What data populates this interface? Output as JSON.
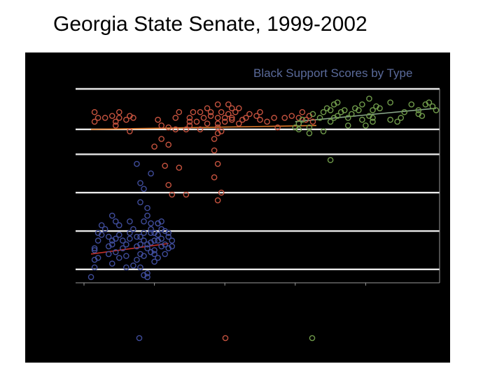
{
  "slide": {
    "title": "Georgia State Senate, 1999-2002"
  },
  "colors": {
    "background": "#000000",
    "group1": "#3f4c9a",
    "group2": "#c4523e",
    "group3": "#6f9a4a",
    "trend1": "#c0302a",
    "trend2": "#e07a2a",
    "trend3": "#8aa88a",
    "gridline": "#e8e8e8",
    "chart_title": "#5a6a9a"
  },
  "chart_data": {
    "type": "scatter",
    "title": "Black Support Scores by Type",
    "xlabel": "",
    "ylabel": "",
    "xlim": [
      0,
      100
    ],
    "ylim": [
      0,
      100
    ],
    "y_gridlines": [
      7,
      27,
      47,
      67,
      80
    ],
    "x_ticks": [
      0,
      20,
      40,
      60,
      80
    ],
    "grid": true,
    "legend_placement": "bottom",
    "series": [
      {
        "key": "group1",
        "points": [
          [
            2,
            3
          ],
          [
            3,
            8
          ],
          [
            3,
            12
          ],
          [
            4,
            13
          ],
          [
            3,
            17
          ],
          [
            3,
            18
          ],
          [
            4,
            22
          ],
          [
            4,
            26
          ],
          [
            5,
            25
          ],
          [
            6,
            28
          ],
          [
            5,
            30
          ],
          [
            7,
            15
          ],
          [
            7,
            19
          ],
          [
            7,
            24
          ],
          [
            8,
            10
          ],
          [
            8,
            20
          ],
          [
            8,
            22
          ],
          [
            9,
            16
          ],
          [
            9,
            23
          ],
          [
            10,
            25
          ],
          [
            10,
            30
          ],
          [
            9,
            32
          ],
          [
            8,
            35
          ],
          [
            10,
            13
          ],
          [
            11,
            18
          ],
          [
            11,
            22
          ],
          [
            12,
            8
          ],
          [
            12,
            14
          ],
          [
            12,
            20
          ],
          [
            13,
            23
          ],
          [
            13,
            26
          ],
          [
            13,
            32
          ],
          [
            14,
            28
          ],
          [
            14,
            9
          ],
          [
            15,
            12
          ],
          [
            15,
            19
          ],
          [
            15,
            24
          ],
          [
            16,
            8
          ],
          [
            16,
            15
          ],
          [
            16,
            20
          ],
          [
            16,
            24
          ],
          [
            17,
            14
          ],
          [
            17,
            22
          ],
          [
            17,
            26
          ],
          [
            17,
            32
          ],
          [
            18,
            18
          ],
          [
            18,
            20
          ],
          [
            19,
            16
          ],
          [
            19,
            21
          ],
          [
            19,
            26
          ],
          [
            19,
            28
          ],
          [
            18,
            3
          ],
          [
            18,
            5
          ],
          [
            17,
            4
          ],
          [
            20,
            11
          ],
          [
            20,
            15
          ],
          [
            20,
            26
          ],
          [
            21,
            22
          ],
          [
            21,
            25
          ],
          [
            21,
            31
          ],
          [
            22,
            19
          ],
          [
            22,
            23
          ],
          [
            22,
            28
          ],
          [
            22,
            32
          ],
          [
            23,
            15
          ],
          [
            23,
            20
          ],
          [
            24,
            24
          ],
          [
            24,
            26
          ],
          [
            25,
            19
          ],
          [
            25,
            22
          ],
          [
            24,
            18
          ],
          [
            23,
            27
          ],
          [
            20,
            22
          ],
          [
            21,
            13
          ],
          [
            18,
            39
          ],
          [
            16,
            42
          ],
          [
            17,
            49
          ],
          [
            19,
            57
          ],
          [
            15,
            62
          ],
          [
            16,
            52
          ],
          [
            18,
            35
          ],
          [
            19,
            31
          ],
          [
            21,
            31
          ],
          [
            20,
            17
          ]
        ],
        "trend": [
          [
            2,
            15
          ],
          [
            24,
            20.5
          ]
        ]
      },
      {
        "key": "group2",
        "points": [
          [
            3,
            84
          ],
          [
            4,
            86
          ],
          [
            3,
            89
          ],
          [
            6,
            86
          ],
          [
            8,
            87
          ],
          [
            9,
            84
          ],
          [
            10,
            86
          ],
          [
            9,
            82
          ],
          [
            10,
            89
          ],
          [
            12,
            85
          ],
          [
            13,
            79
          ],
          [
            13,
            87
          ],
          [
            14,
            86
          ],
          [
            21,
            85
          ],
          [
            22,
            82
          ],
          [
            22,
            75
          ],
          [
            23,
            61
          ],
          [
            20,
            71
          ],
          [
            24,
            81
          ],
          [
            24,
            72
          ],
          [
            26,
            80
          ],
          [
            26,
            86
          ],
          [
            27,
            89
          ],
          [
            27,
            60
          ],
          [
            29,
            80
          ],
          [
            30,
            84
          ],
          [
            30,
            86
          ],
          [
            31,
            89
          ],
          [
            32,
            84
          ],
          [
            33,
            80
          ],
          [
            33,
            89
          ],
          [
            34,
            86
          ],
          [
            35,
            83
          ],
          [
            36,
            87
          ],
          [
            35,
            91
          ],
          [
            37,
            75
          ],
          [
            38,
            78
          ],
          [
            38,
            81
          ],
          [
            37,
            69
          ],
          [
            38,
            62
          ],
          [
            37,
            55
          ],
          [
            38,
            83
          ],
          [
            38,
            86
          ],
          [
            39,
            89
          ],
          [
            39,
            79
          ],
          [
            40,
            84
          ],
          [
            40,
            86
          ],
          [
            41,
            88
          ],
          [
            42,
            85
          ],
          [
            42,
            86
          ],
          [
            43,
            89
          ],
          [
            44,
            83
          ],
          [
            44,
            91
          ],
          [
            45,
            85
          ],
          [
            46,
            86
          ],
          [
            47,
            88
          ],
          [
            49,
            87
          ],
          [
            50,
            89
          ],
          [
            50,
            85
          ],
          [
            52,
            84
          ],
          [
            54,
            86
          ],
          [
            55,
            81
          ],
          [
            57,
            86
          ],
          [
            59,
            87
          ],
          [
            61,
            86
          ],
          [
            62,
            89
          ],
          [
            63,
            85
          ],
          [
            64,
            87
          ],
          [
            65,
            84
          ],
          [
            39,
            47
          ],
          [
            38,
            43
          ],
          [
            24,
            51
          ],
          [
            25,
            46
          ],
          [
            29,
            46
          ],
          [
            36,
            89
          ],
          [
            38,
            93
          ],
          [
            41,
            93
          ],
          [
            42,
            91
          ],
          [
            30,
            82
          ]
        ],
        "trend": [
          [
            2,
            80
          ],
          [
            66,
            82
          ]
        ]
      },
      {
        "key": "group3",
        "points": [
          [
            61,
            83
          ],
          [
            62,
            85
          ],
          [
            64,
            81
          ],
          [
            65,
            88
          ],
          [
            67,
            86
          ],
          [
            68,
            89
          ],
          [
            69,
            91
          ],
          [
            70,
            90
          ],
          [
            70,
            84
          ],
          [
            71,
            86
          ],
          [
            72,
            87
          ],
          [
            73,
            89
          ],
          [
            74,
            90
          ],
          [
            75,
            86
          ],
          [
            76,
            88
          ],
          [
            71,
            93
          ],
          [
            72,
            94
          ],
          [
            77,
            91
          ],
          [
            78,
            90
          ],
          [
            79,
            85
          ],
          [
            80,
            82
          ],
          [
            81,
            87
          ],
          [
            82,
            84
          ],
          [
            82,
            86
          ],
          [
            82,
            90
          ],
          [
            83,
            92
          ],
          [
            84,
            91
          ],
          [
            87,
            94
          ],
          [
            87,
            85
          ],
          [
            89,
            84
          ],
          [
            90,
            86
          ],
          [
            91,
            89
          ],
          [
            93,
            93
          ],
          [
            95,
            88
          ],
          [
            95,
            90
          ],
          [
            96,
            87
          ],
          [
            97,
            93
          ],
          [
            98,
            94
          ],
          [
            99,
            92
          ],
          [
            100,
            90
          ],
          [
            70,
            64
          ],
          [
            64,
            78
          ],
          [
            68,
            79
          ],
          [
            60,
            81
          ],
          [
            61,
            80
          ],
          [
            79,
            93
          ],
          [
            81,
            96
          ],
          [
            75,
            82
          ]
        ],
        "trend": [
          [
            60,
            84
          ],
          [
            100,
            91
          ]
        ]
      }
    ]
  }
}
